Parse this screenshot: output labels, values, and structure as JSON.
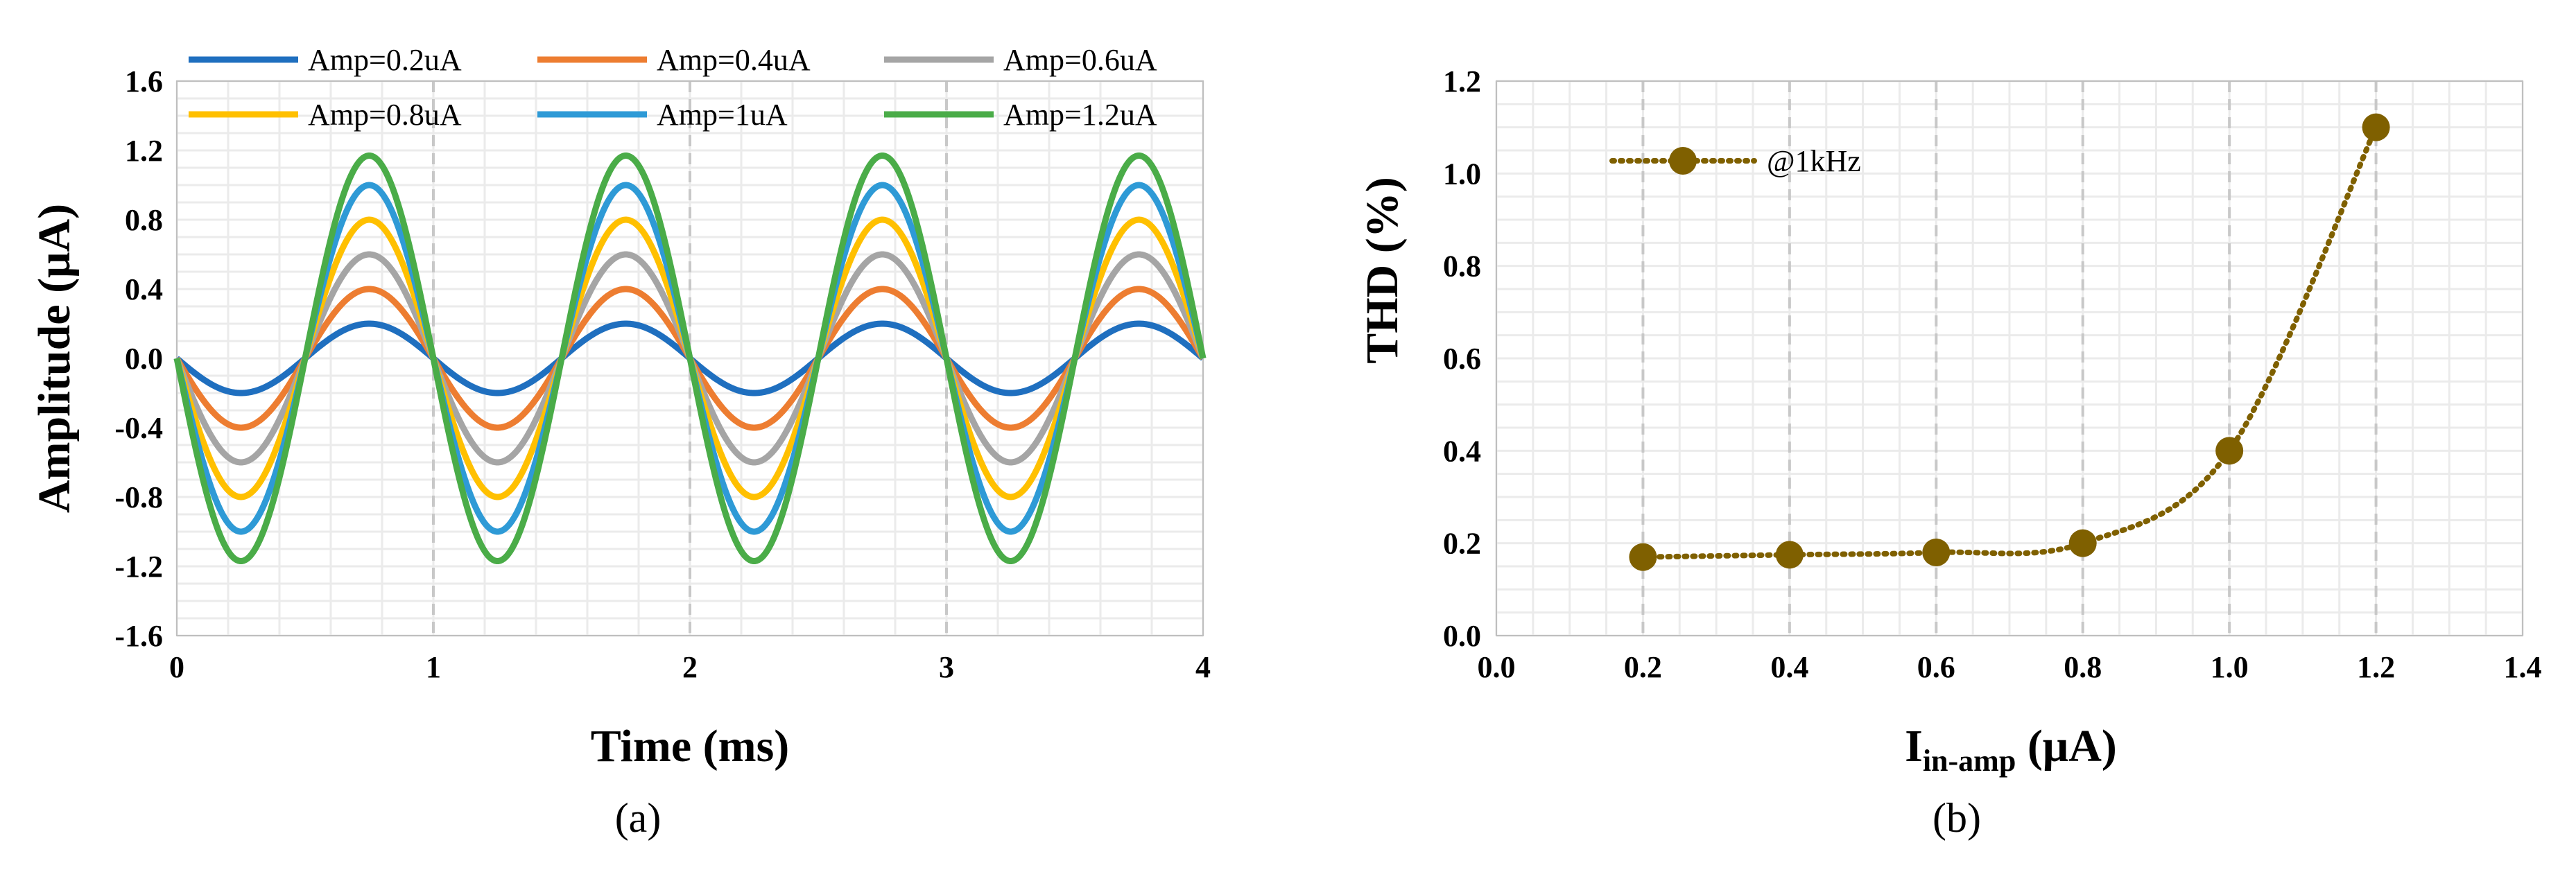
{
  "chart_data": [
    {
      "type": "line",
      "panel_label": "(a)",
      "xlabel": "Time (ms)",
      "ylabel": "Amplitude (μA)",
      "xlim": [
        0,
        4
      ],
      "ylim": [
        -1.6,
        1.6
      ],
      "xticks": [
        "0",
        "1",
        "2",
        "3",
        "4"
      ],
      "yticks": [
        "-1.6",
        "-1.2",
        "-0.8",
        "-0.4",
        "0.0",
        "0.4",
        "0.8",
        "1.2",
        "1.6"
      ],
      "grid": true,
      "legend_position": "top",
      "waveform": "sine",
      "frequency_khz": 1,
      "phase": "starts at 0 going negative",
      "series": [
        {
          "name": "Amp=0.2uA",
          "amplitude": 0.2,
          "color": "#1f6fbf"
        },
        {
          "name": "Amp=0.4uA",
          "amplitude": 0.4,
          "color": "#ed7d31"
        },
        {
          "name": "Amp=0.6uA",
          "amplitude": 0.6,
          "color": "#a5a5a5"
        },
        {
          "name": "Amp=0.8uA",
          "amplitude": 0.8,
          "color": "#ffc000"
        },
        {
          "name": "Amp=1uA",
          "amplitude": 1.0,
          "color": "#2e9ad6"
        },
        {
          "name": "Amp=1.2uA",
          "amplitude": 1.17,
          "color": "#4aac48"
        }
      ]
    },
    {
      "type": "line",
      "panel_label": "(b)",
      "xlabel_main": "I",
      "xlabel_sub": "in-amp",
      "xlabel_unit": " (μA)",
      "ylabel": "THD (%)",
      "xlim": [
        0,
        1.4
      ],
      "ylim": [
        0,
        1.2
      ],
      "xticks": [
        "0.0",
        "0.2",
        "0.4",
        "0.6",
        "0.8",
        "1.0",
        "1.2",
        "1.4"
      ],
      "yticks": [
        "0.0",
        "0.2",
        "0.4",
        "0.6",
        "0.8",
        "1.0",
        "1.2"
      ],
      "grid": true,
      "legend_position": "top-left",
      "series": [
        {
          "name": "@1kHz",
          "color": "#7f6000",
          "x": [
            0.2,
            0.4,
            0.6,
            0.8,
            1.0,
            1.2
          ],
          "y": [
            0.17,
            0.175,
            0.18,
            0.2,
            0.4,
            1.1
          ]
        }
      ]
    }
  ]
}
